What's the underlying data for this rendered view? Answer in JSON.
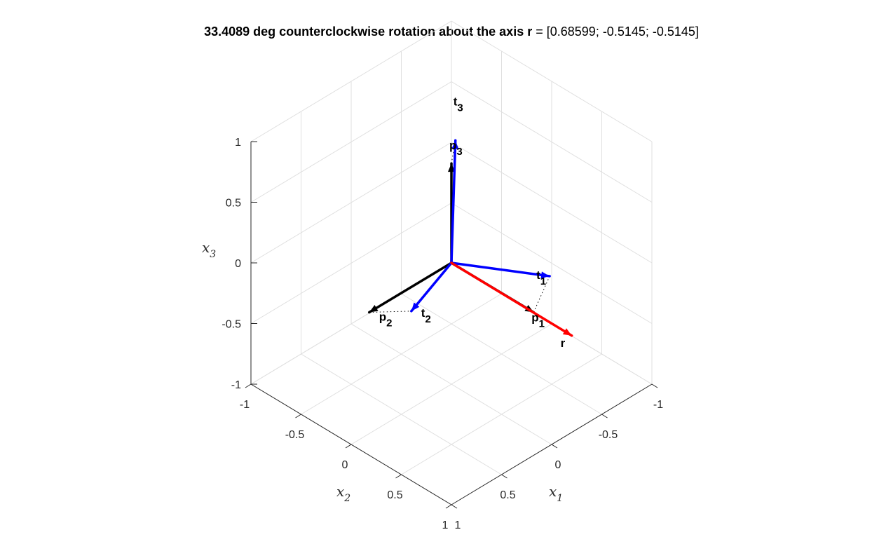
{
  "chart_data": {
    "type": "3d-quiver",
    "title": {
      "prefix": "33.4089 deg counterclockwise rotation about the axis ",
      "axis_symbol": "r",
      "suffix": " = [0.68599; -0.5145; -0.5145]"
    },
    "axes": {
      "x1": {
        "label": "x",
        "subscript": "1",
        "lim": [
          -1,
          1
        ],
        "ticks": [
          -1,
          -0.5,
          0,
          0.5,
          1
        ],
        "tick_labels": [
          "-1",
          "-0.5",
          "0",
          "0.5",
          "1"
        ]
      },
      "x2": {
        "label": "x",
        "subscript": "2",
        "lim": [
          -1,
          1
        ],
        "ticks": [
          -1,
          -0.5,
          0,
          0.5,
          1
        ],
        "tick_labels": [
          "-1",
          "-0.5",
          "0",
          "0.5",
          "1"
        ]
      },
      "x3": {
        "label": "x",
        "subscript": "3",
        "lim": [
          -1,
          1
        ],
        "ticks": [
          -1,
          -0.5,
          0,
          0.5,
          1
        ],
        "tick_labels": [
          "-1",
          "-0.5",
          "0",
          "0.5",
          "1"
        ]
      }
    },
    "grid": true,
    "view": {
      "azimuth": -45,
      "elevation": 30
    },
    "vectors": [
      {
        "name": "p",
        "sub": "1",
        "color": "#000000",
        "x": [
          0.82,
          0,
          0
        ]
      },
      {
        "name": "p",
        "sub": "2",
        "color": "#000000",
        "x": [
          0,
          0.82,
          0
        ]
      },
      {
        "name": "p",
        "sub": "3",
        "color": "#000000",
        "x": [
          0,
          0,
          0.82
        ]
      },
      {
        "name": "t",
        "sub": "1",
        "color": "#0000ff",
        "x": [
          0.58,
          -0.4,
          -0.02
        ]
      },
      {
        "name": "t",
        "sub": "2",
        "color": "#0000ff",
        "x": [
          0.17,
          0.57,
          -0.03
        ]
      },
      {
        "name": "t",
        "sub": "3",
        "color": "#0000ff",
        "x": [
          0.0,
          -0.04,
          0.99
        ]
      },
      {
        "name": "r",
        "sub": "",
        "color": "#ff0000",
        "x": [
          0.68599,
          -0.5145,
          -0.5145
        ]
      }
    ],
    "connectors": [
      {
        "from": "p1",
        "to": "t1"
      },
      {
        "from": "p2",
        "to": "t2"
      },
      {
        "from": "p3",
        "to": "t3"
      }
    ]
  }
}
